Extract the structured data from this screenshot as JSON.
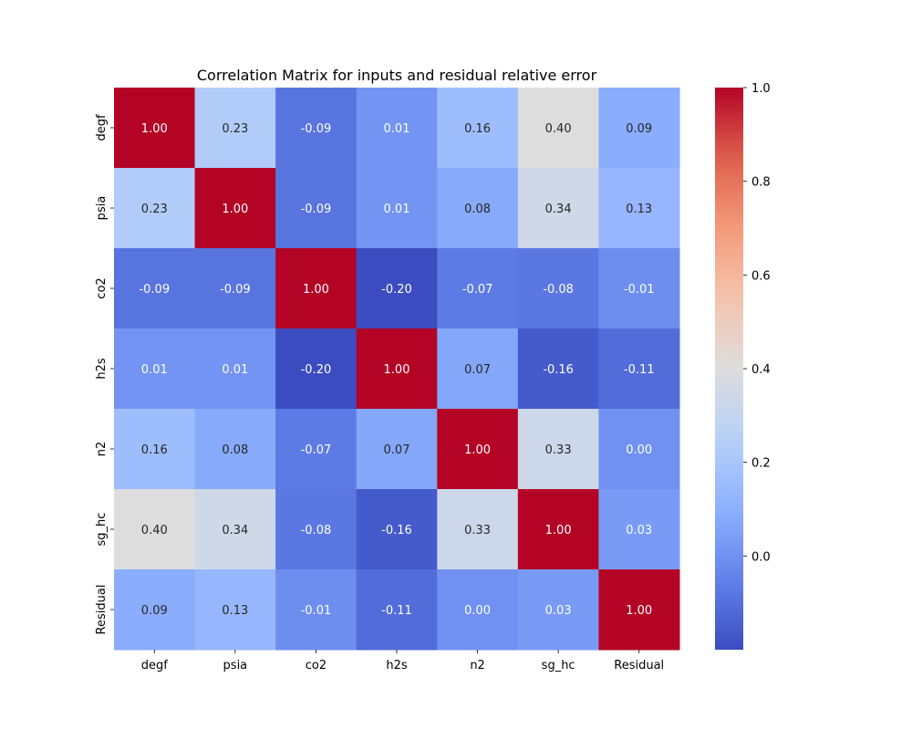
{
  "chart_data": {
    "type": "heatmap",
    "title": "Correlation Matrix for inputs and residual relative error",
    "xlabel": "",
    "ylabel": "",
    "x_labels": [
      "degf",
      "psia",
      "co2",
      "h2s",
      "n2",
      "sg_hc",
      "Residual"
    ],
    "y_labels": [
      "degf",
      "psia",
      "co2",
      "h2s",
      "n2",
      "sg_hc",
      "Residual"
    ],
    "values": [
      [
        1.0,
        0.23,
        -0.09,
        0.01,
        0.16,
        0.4,
        0.09
      ],
      [
        0.23,
        1.0,
        -0.09,
        0.01,
        0.08,
        0.34,
        0.13
      ],
      [
        -0.09,
        -0.09,
        1.0,
        -0.2,
        -0.07,
        -0.08,
        -0.01
      ],
      [
        0.01,
        0.01,
        -0.2,
        1.0,
        0.07,
        -0.16,
        -0.11
      ],
      [
        0.16,
        0.08,
        -0.07,
        0.07,
        1.0,
        0.33,
        0.0
      ],
      [
        0.4,
        0.34,
        -0.08,
        -0.16,
        0.33,
        1.0,
        0.03
      ],
      [
        0.09,
        0.13,
        -0.01,
        -0.11,
        0.0,
        0.03,
        1.0
      ]
    ],
    "colorbar": {
      "colormap": "coolwarm",
      "vmin": -0.2,
      "vmax": 1.0,
      "ticks": [
        0.0,
        0.2,
        0.4,
        0.6,
        0.8,
        1.0
      ],
      "tick_labels": [
        "0.0",
        "0.2",
        "0.4",
        "0.6",
        "0.8",
        "1.0"
      ]
    },
    "annotations": true,
    "grid": false
  }
}
